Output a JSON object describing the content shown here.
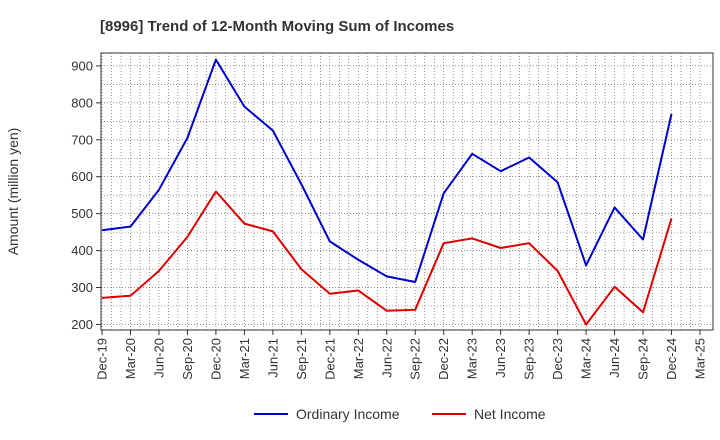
{
  "chart_data": {
    "type": "line",
    "title": "[8996]  Trend of 12-Month Moving Sum of Incomes",
    "xlabel": "",
    "ylabel": "Amount (million yen)",
    "ylim": [
      185,
      935
    ],
    "yticks": [
      200,
      300,
      400,
      500,
      600,
      700,
      800,
      900
    ],
    "categories": [
      "Dec-19",
      "Mar-20",
      "Jun-20",
      "Sep-20",
      "Dec-20",
      "Mar-21",
      "Jun-21",
      "Sep-21",
      "Dec-21",
      "Mar-22",
      "Jun-22",
      "Sep-22",
      "Dec-22",
      "Mar-23",
      "Jun-23",
      "Sep-23",
      "Dec-23",
      "Mar-24",
      "Jun-24",
      "Sep-24",
      "Dec-24",
      "Mar-25"
    ],
    "grid": true,
    "legend_position": "bottom-center",
    "series": [
      {
        "name": "Ordinary Income",
        "color": "#0000cc",
        "values": [
          455,
          465,
          565,
          705,
          917,
          790,
          725,
          580,
          425,
          375,
          330,
          315,
          555,
          662,
          615,
          652,
          585,
          360,
          517,
          430,
          770,
          null
        ]
      },
      {
        "name": "Net Income",
        "color": "#dd0000",
        "values": [
          272,
          278,
          345,
          437,
          560,
          473,
          452,
          350,
          283,
          292,
          237,
          240,
          420,
          433,
          407,
          420,
          345,
          200,
          302,
          233,
          487,
          null
        ]
      }
    ]
  }
}
